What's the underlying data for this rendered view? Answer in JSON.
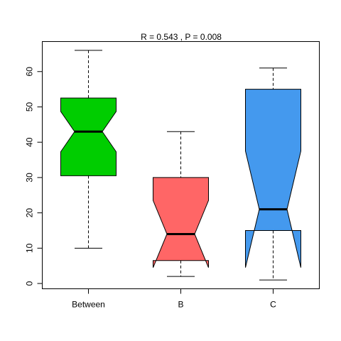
{
  "chart_data": {
    "type": "box",
    "title": "R =  0.543 ,  P =  0.008",
    "xlabel": "",
    "ylabel": "",
    "ylim": [
      -1.5,
      68.5
    ],
    "y_ticks": [
      0,
      10,
      20,
      30,
      40,
      50,
      60
    ],
    "notched": true,
    "grid": false,
    "legend": "none",
    "categories": [
      "Between",
      "B",
      "C"
    ],
    "boxes": [
      {
        "name": "Between",
        "color": "#00CD00",
        "min": 10,
        "q1": 30.5,
        "median": 43,
        "q3": 52.5,
        "max": 66,
        "notch_low": 37.3,
        "notch_high": 48.7
      },
      {
        "name": "B",
        "color": "#FF6666",
        "min": 2,
        "q1": 6.5,
        "median": 14,
        "q3": 30,
        "max": 43,
        "notch_low": 4.5,
        "notch_high": 23.5
      },
      {
        "name": "C",
        "color": "#4499EE",
        "min": 1,
        "q1": 15,
        "median": 21,
        "q3": 55,
        "max": 61,
        "notch_low": 4.5,
        "notch_high": 37.5
      }
    ]
  }
}
